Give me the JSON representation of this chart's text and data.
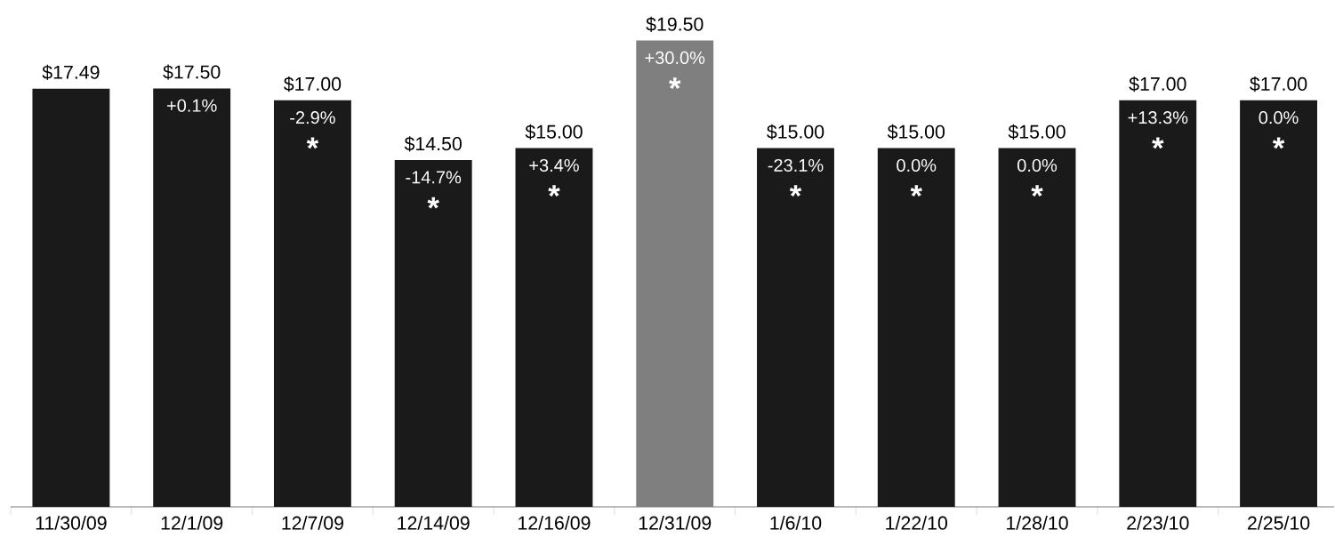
{
  "chart_data": {
    "type": "bar",
    "categories": [
      "11/30/09",
      "12/1/09",
      "12/7/09",
      "12/14/09",
      "12/16/09",
      "12/31/09",
      "1/6/10",
      "1/22/10",
      "1/28/10",
      "2/23/10",
      "2/25/10"
    ],
    "values": [
      17.49,
      17.5,
      17.0,
      14.5,
      15.0,
      19.5,
      15.0,
      15.0,
      15.0,
      17.0,
      17.0
    ],
    "colors": [
      "#1a1a1a",
      "#1a1a1a",
      "#1a1a1a",
      "#1a1a1a",
      "#1a1a1a",
      "#7f7f7f",
      "#1a1a1a",
      "#1a1a1a",
      "#1a1a1a",
      "#1a1a1a",
      "#1a1a1a"
    ],
    "value_labels": [
      "$17.49",
      "$17.50",
      "$17.00",
      "$14.50",
      "$15.00",
      "$19.50",
      "$15.00",
      "$15.00",
      "$15.00",
      "$17.00",
      "$17.00"
    ],
    "annotations": [
      {
        "text": "+0.1%",
        "x": "12/1/09",
        "y": 17.5
      },
      {
        "text": "-2.9%",
        "x": "12/7/09",
        "y": 17.0
      },
      {
        "text": "*",
        "x": "12/7/09",
        "y": 17.0
      },
      {
        "text": "-14.7%",
        "x": "12/14/09",
        "y": 14.5
      },
      {
        "text": "*",
        "x": "12/14/09",
        "y": 14.5
      },
      {
        "text": "+3.4%",
        "x": "12/16/09",
        "y": 15.0
      },
      {
        "text": "*",
        "x": "12/16/09",
        "y": 15.0
      },
      {
        "text": "+30.0%",
        "x": "12/31/09",
        "y": 19.5
      },
      {
        "text": "*",
        "x": "12/31/09",
        "y": 19.5
      },
      {
        "text": "-23.1%",
        "x": "1/6/10",
        "y": 15.0
      },
      {
        "text": "*",
        "x": "1/6/10",
        "y": 15.0
      },
      {
        "text": "0.0%",
        "x": "1/22/10",
        "y": 15.0
      },
      {
        "text": "*",
        "x": "1/22/10",
        "y": 15.0
      },
      {
        "text": "0.0%",
        "x": "1/28/10",
        "y": 15.0
      },
      {
        "text": "*",
        "x": "1/28/10",
        "y": 15.0
      },
      {
        "text": "+13.3%",
        "x": "2/23/10",
        "y": 17.0
      },
      {
        "text": "*",
        "x": "2/23/10",
        "y": 17.0
      },
      {
        "text": "0.0%",
        "x": "2/25/10",
        "y": 17.0
      },
      {
        "text": "*",
        "x": "2/25/10",
        "y": 17.0
      }
    ]
  }
}
